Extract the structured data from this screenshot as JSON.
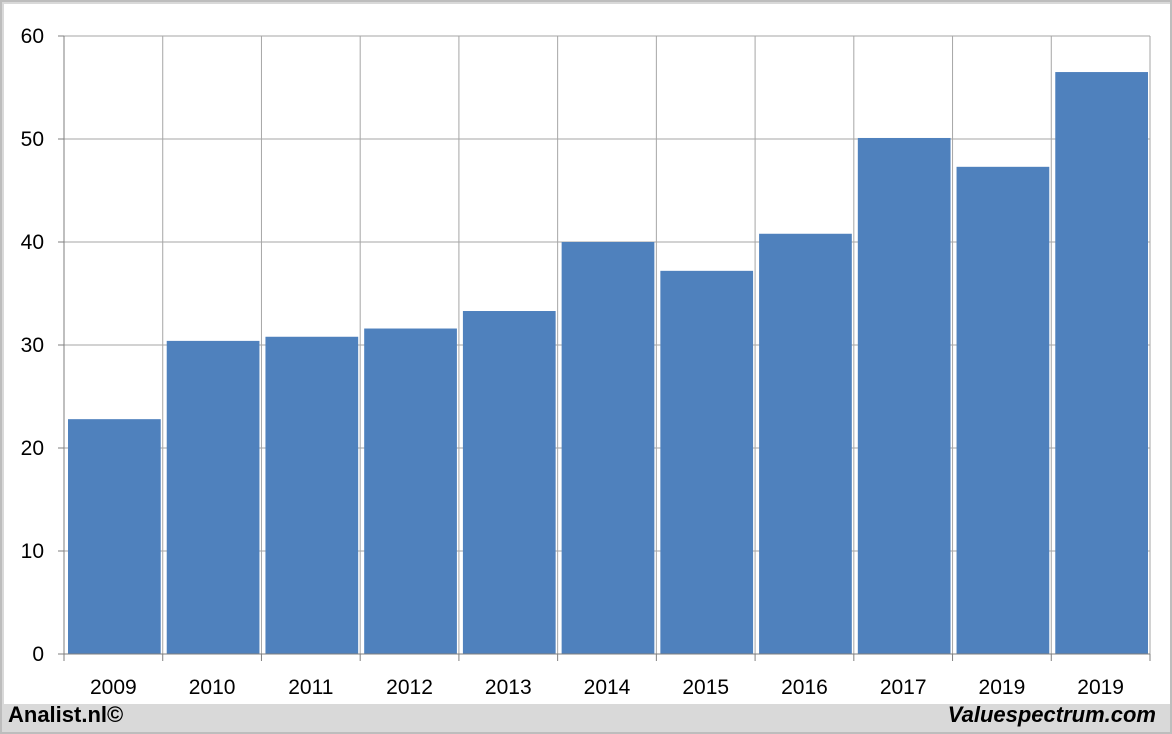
{
  "chart_data": {
    "type": "bar",
    "title": "",
    "xlabel": "",
    "ylabel": "",
    "categories": [
      "2009",
      "2010",
      "2011",
      "2012",
      "2013",
      "2014",
      "2015",
      "2016",
      "2017",
      "2019",
      "2019"
    ],
    "values": [
      22.8,
      30.4,
      30.8,
      31.6,
      33.3,
      40.0,
      37.2,
      40.8,
      50.1,
      47.3,
      56.5
    ],
    "ylim": [
      0,
      60
    ],
    "yticks": [
      "0",
      "10",
      "20",
      "30",
      "40",
      "50",
      "60"
    ],
    "grid": true,
    "legend": "none",
    "bar_color": "#4f81bd",
    "grid_color": "#a6a6a6"
  },
  "footer": {
    "left": "Analist.nl©",
    "right": "Valuespectrum.com"
  }
}
